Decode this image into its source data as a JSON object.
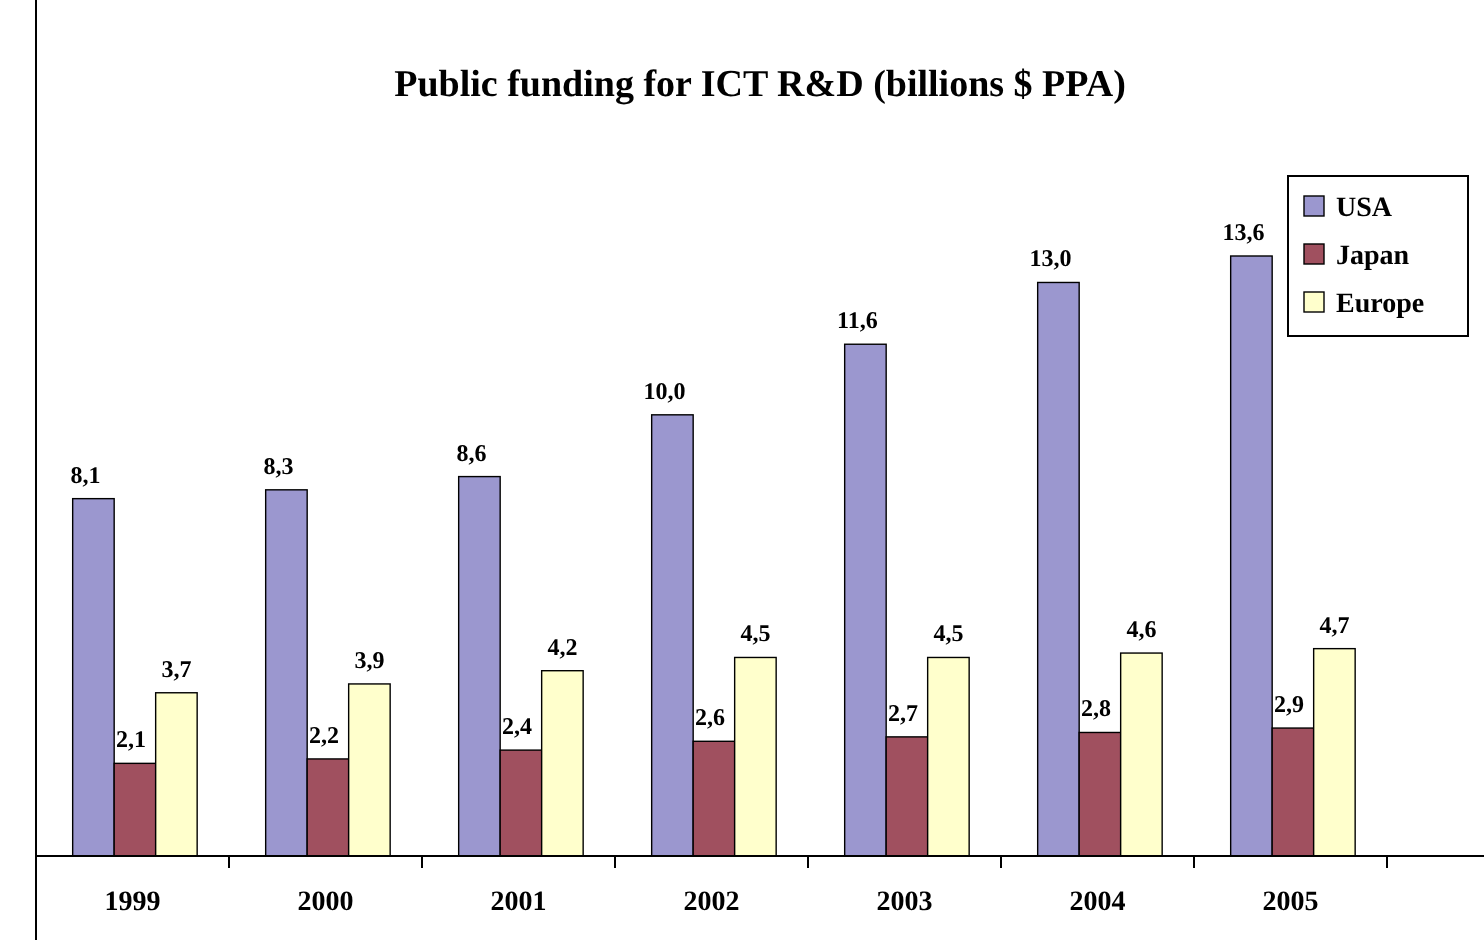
{
  "chart_data": {
    "type": "bar",
    "title": "Public funding for ICT R&D (billions $ PPA)",
    "categories": [
      "1999",
      "2000",
      "2001",
      "2002",
      "2003",
      "2004",
      "2005"
    ],
    "series": [
      {
        "name": "USA",
        "color": "#9b97cf",
        "values": [
          8.1,
          8.3,
          8.6,
          10.0,
          11.6,
          13.0,
          13.6
        ],
        "value_labels": [
          "8,1",
          "8,3",
          "8,6",
          "10,0",
          "11,6",
          "13,0",
          "13,6"
        ]
      },
      {
        "name": "Japan",
        "color": "#a0505f",
        "values": [
          2.1,
          2.2,
          2.4,
          2.6,
          2.7,
          2.8,
          2.9
        ],
        "value_labels": [
          "2,1",
          "2,2",
          "2,4",
          "2,6",
          "2,7",
          "2,8",
          "2,9"
        ]
      },
      {
        "name": "Europe",
        "color": "#ffffcc",
        "values": [
          3.7,
          3.9,
          4.2,
          4.5,
          4.5,
          4.6,
          4.7
        ],
        "value_labels": [
          "3,7",
          "3,9",
          "4,2",
          "4,5",
          "4,5",
          "4,6",
          "4,7"
        ]
      }
    ],
    "legend": "top right",
    "grid": false
  }
}
